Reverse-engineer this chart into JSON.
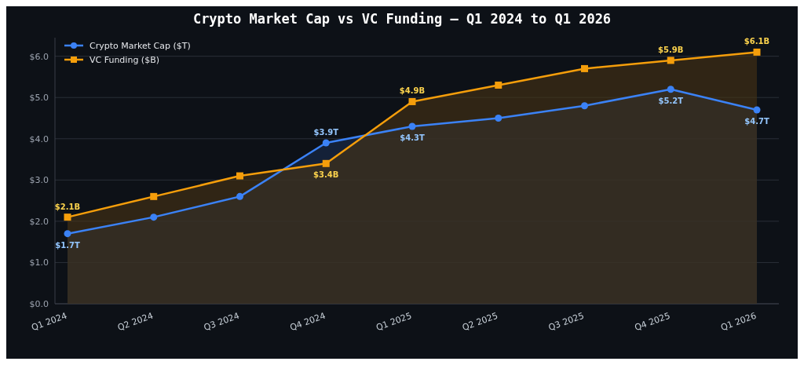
{
  "chart_data": {
    "type": "area",
    "title": "Crypto Market Cap vs VC Funding — Q1 2024 to Q1 2026",
    "categories": [
      "Q1 2024",
      "Q2 2024",
      "Q3 2024",
      "Q4 2024",
      "Q1 2025",
      "Q2 2025",
      "Q3 2025",
      "Q4 2025",
      "Q1 2026"
    ],
    "series": [
      {
        "name": "Crypto Market Cap ($T)",
        "color": "#3b82f6",
        "marker": "circle",
        "values": [
          1.7,
          2.1,
          2.6,
          3.9,
          4.3,
          4.5,
          4.8,
          5.2,
          4.7
        ],
        "value_labels": [
          "$1.7T",
          null,
          null,
          "$3.9T",
          "$4.3T",
          null,
          null,
          "$5.2T",
          "$4.7T"
        ]
      },
      {
        "name": "VC Funding ($B)",
        "color": "#f59e0b",
        "marker": "square",
        "values": [
          2.1,
          2.6,
          3.1,
          3.4,
          4.9,
          5.3,
          5.7,
          5.9,
          6.1
        ],
        "value_labels": [
          "$2.1B",
          null,
          null,
          "$3.4B",
          "$4.9B",
          null,
          null,
          "$5.9B",
          "$6.1B"
        ]
      }
    ],
    "ylim": [
      0,
      6.45
    ],
    "yticks": [
      {
        "value": 0,
        "label": "$0.0"
      },
      {
        "value": 1,
        "label": "$1.0"
      },
      {
        "value": 2,
        "label": "$2.0"
      },
      {
        "value": 3,
        "label": "$3.0"
      },
      {
        "value": 4,
        "label": "$4.0"
      },
      {
        "value": 5,
        "label": "$5.0"
      },
      {
        "value": 6,
        "label": "$6.0"
      }
    ],
    "grid": "y",
    "legend": "top left",
    "line_style": "solid"
  }
}
